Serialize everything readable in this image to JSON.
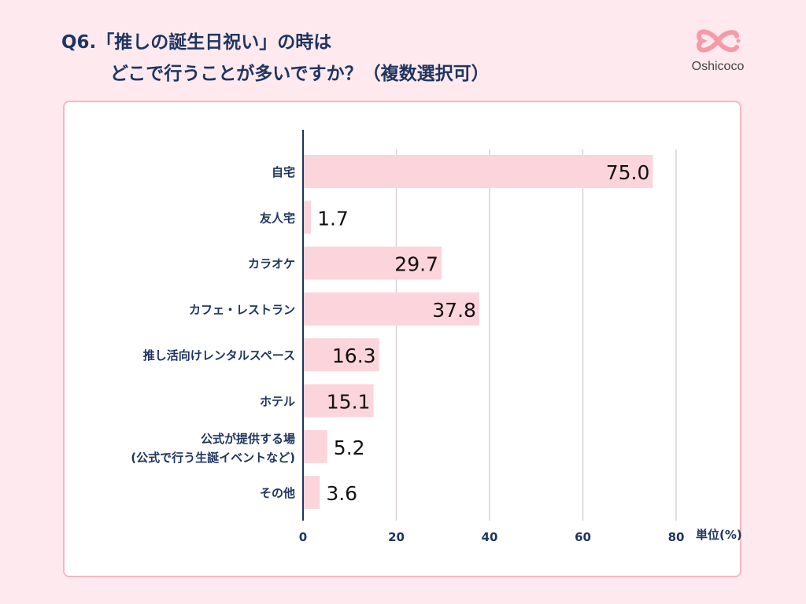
{
  "title": {
    "line1": "Q6.「推しの誕生日祝い」の時は",
    "line2": "どこで行うことが多いですか？（複数選択可）"
  },
  "logo": {
    "text": "Oshicoco"
  },
  "chart_data": {
    "type": "bar",
    "orientation": "horizontal",
    "categories": [
      "自宅",
      "友人宅",
      "カラオケ",
      "カフェ・レストラン",
      "推し活向けレンタルスペース",
      "ホテル",
      [
        "公式が提供する場",
        "(公式で行う生誕イベントなど)"
      ],
      "その他"
    ],
    "values": [
      75.0,
      1.7,
      29.7,
      37.8,
      16.3,
      15.1,
      5.2,
      3.6
    ],
    "value_labels": [
      "75.0",
      "1.7",
      "29.7",
      "37.8",
      "16.3",
      "15.1",
      "5.2",
      "3.6"
    ],
    "xlim": [
      0,
      80
    ],
    "xticks": [
      0,
      20,
      40,
      60,
      80
    ],
    "unit_label": "単位(%)",
    "grid": "vertical",
    "bar_color": "#fcd5dc",
    "axis_color": "#1f3560"
  }
}
